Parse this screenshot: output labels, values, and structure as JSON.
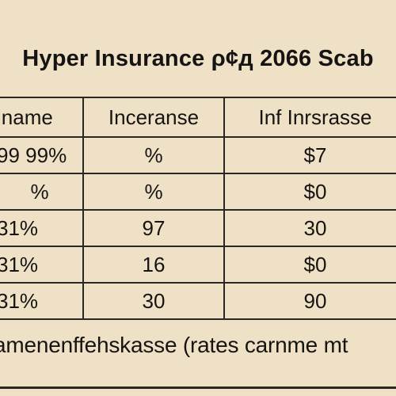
{
  "title": "Hyper Insurance ρ¢д 2066 Scab",
  "table": {
    "headers": [
      "iname",
      "Inceranse",
      "Inf Inrsrasse"
    ],
    "rows": [
      [
        "99 99%",
        "%",
        "$7"
      ],
      [
        "%",
        "%",
        "$0"
      ],
      [
        "31%",
        "97",
        "30"
      ],
      [
        "31%",
        "16",
        "$0"
      ],
      [
        "31%",
        "30",
        "90"
      ]
    ]
  },
  "footer": "amenenffehskasse (rates carnme mt"
}
